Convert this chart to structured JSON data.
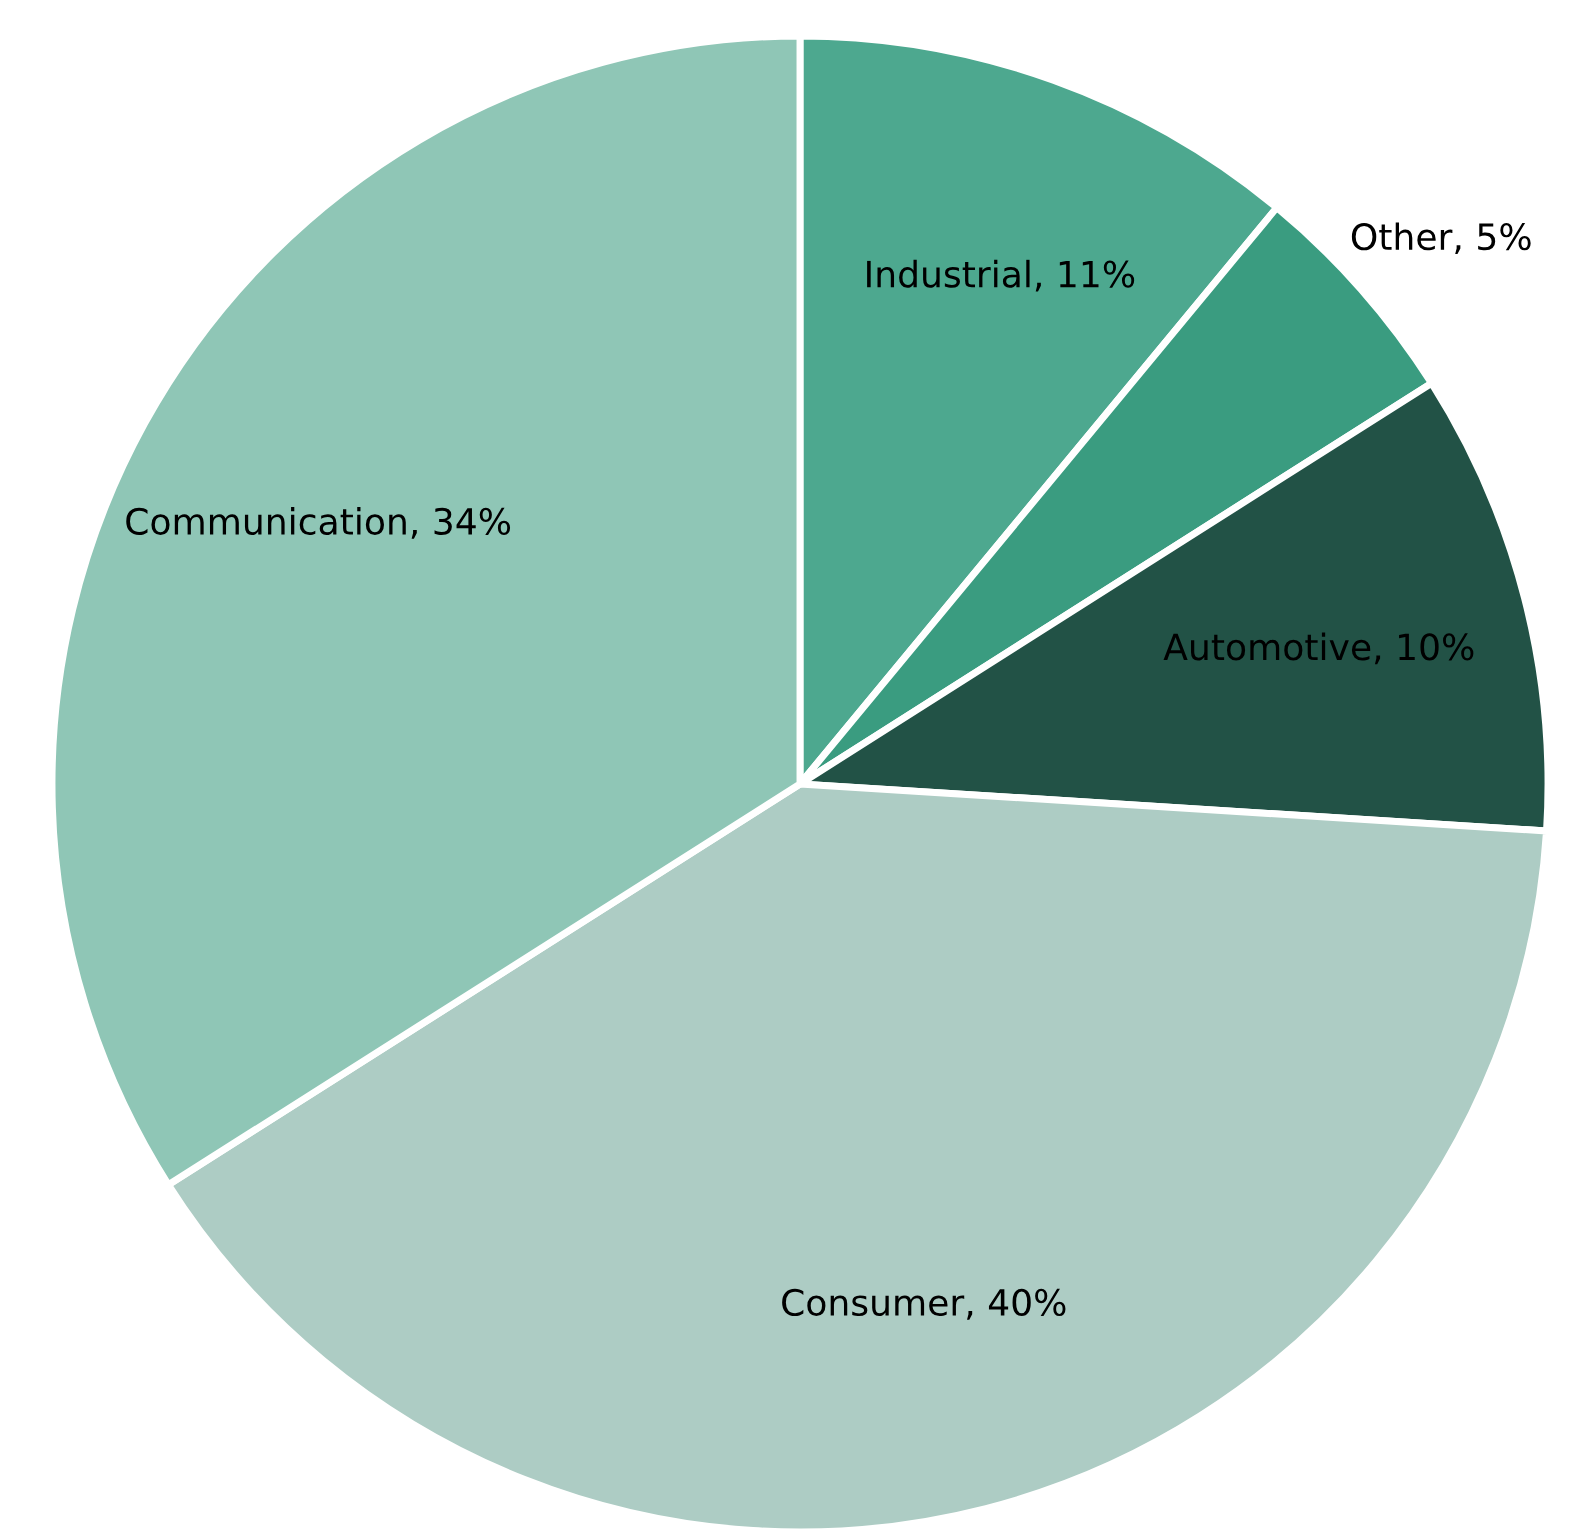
{
  "chart_data": {
    "type": "pie",
    "categories": [
      "Industrial",
      "Other",
      "Automotive",
      "Consumer",
      "Communication"
    ],
    "values": [
      11,
      5,
      10,
      40,
      34
    ],
    "colors": [
      "#4da88f",
      "#3a9c80",
      "#225246",
      "#adccc4",
      "#8fc6b6"
    ],
    "value_labels": [
      ", 11%",
      ", 5%",
      ", 10%",
      ", 40%",
      ", 34%"
    ],
    "legend": false
  }
}
